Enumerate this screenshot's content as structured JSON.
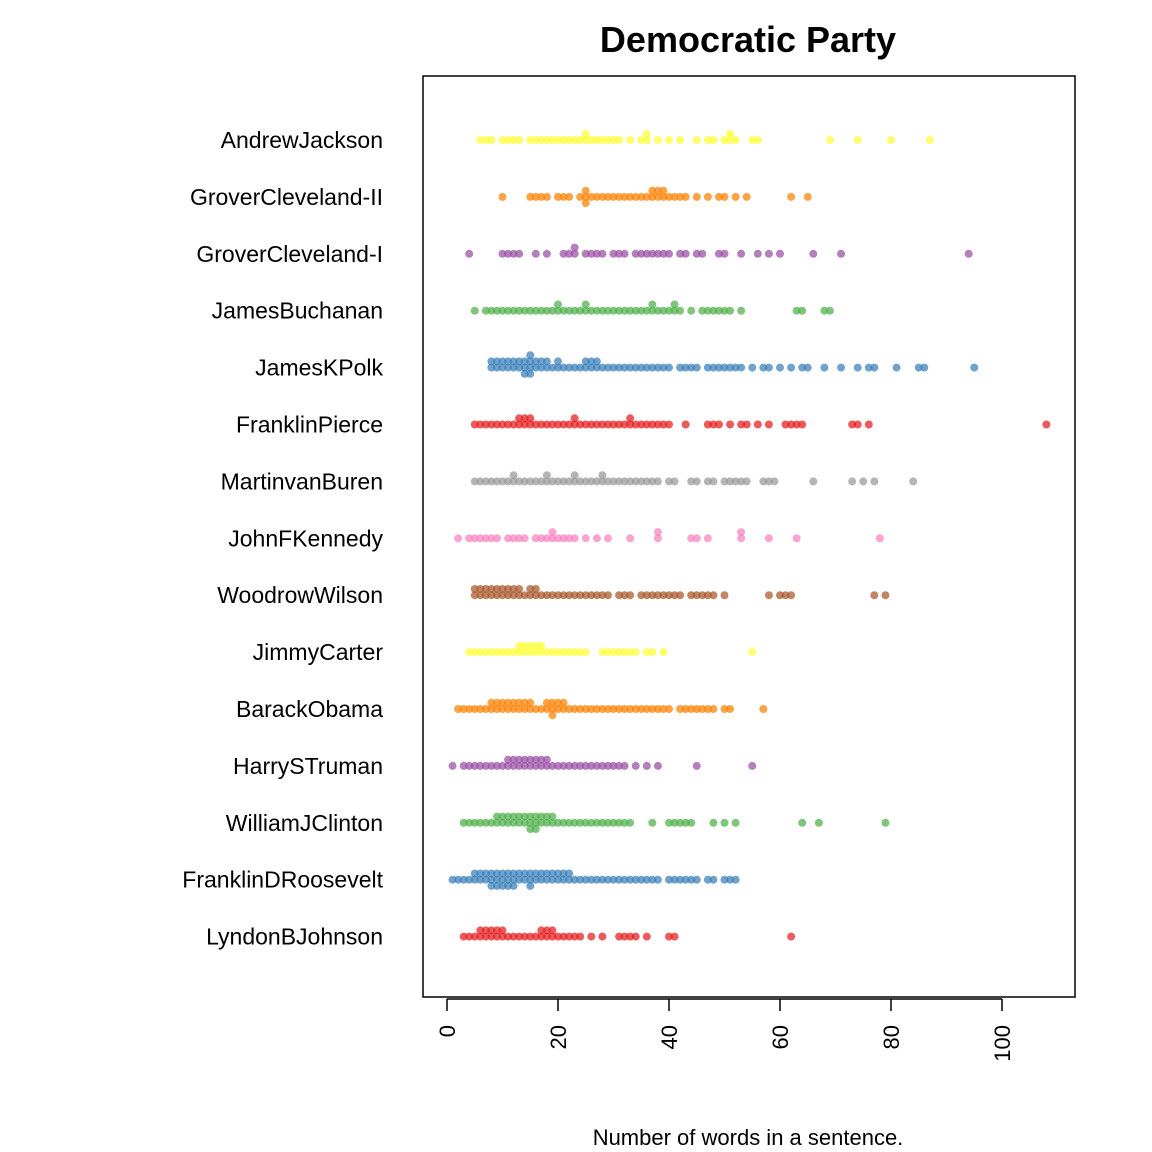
{
  "chart_data": {
    "type": "scatter",
    "subtype": "beeswarm",
    "title": "Democratic Party",
    "xlabel": "Number of words in a sentence.",
    "ylabel": "",
    "xlim": [
      -4,
      113
    ],
    "xticks": [
      0,
      20,
      40,
      60,
      80,
      100
    ],
    "grid": false,
    "legend": "none",
    "categories": [
      "AndrewJackson",
      "GroverCleveland-II",
      "GroverCleveland-I",
      "JamesBuchanan",
      "JamesKPolk",
      "FranklinPierce",
      "MartinvanBuren",
      "JohnFKennedy",
      "WoodrowWilson",
      "JimmyCarter",
      "BarackObama",
      "HarrySTruman",
      "WilliamJClinton",
      "FranklinDRoosevelt",
      "LyndonBJohnson"
    ],
    "series": [
      {
        "name": "AndrewJackson",
        "color": "#ffff33",
        "values": [
          6,
          7,
          8,
          10,
          11,
          12,
          13,
          15,
          16,
          17,
          18,
          19,
          20,
          21,
          22,
          23,
          24,
          25,
          25,
          26,
          27,
          28,
          29,
          30,
          31,
          33,
          35,
          36,
          36,
          38,
          40,
          42,
          45,
          47,
          48,
          50,
          51,
          51,
          52,
          55,
          56,
          69,
          74,
          80,
          87
        ]
      },
      {
        "name": "GroverCleveland-II",
        "color": "#ff7f00",
        "values": [
          10,
          15,
          16,
          17,
          18,
          20,
          21,
          22,
          24,
          25,
          25,
          25,
          26,
          27,
          28,
          29,
          30,
          31,
          32,
          33,
          34,
          35,
          36,
          37,
          37,
          38,
          38,
          39,
          39,
          40,
          41,
          42,
          43,
          45,
          47,
          49,
          50,
          52,
          54,
          62,
          65
        ]
      },
      {
        "name": "GroverCleveland-I",
        "color": "#984ea3",
        "values": [
          4,
          10,
          11,
          12,
          13,
          16,
          18,
          21,
          22,
          23,
          23,
          25,
          26,
          27,
          28,
          30,
          31,
          32,
          34,
          35,
          36,
          37,
          38,
          39,
          40,
          42,
          43,
          45,
          46,
          49,
          50,
          53,
          56,
          58,
          60,
          66,
          71,
          94
        ]
      },
      {
        "name": "JamesBuchanan",
        "color": "#4daf4a",
        "values": [
          5,
          7,
          8,
          9,
          10,
          11,
          12,
          13,
          14,
          15,
          16,
          17,
          18,
          19,
          20,
          20,
          21,
          22,
          23,
          24,
          25,
          25,
          26,
          27,
          28,
          29,
          30,
          31,
          32,
          33,
          34,
          35,
          36,
          37,
          37,
          38,
          39,
          40,
          41,
          41,
          42,
          44,
          46,
          47,
          48,
          49,
          50,
          51,
          53,
          63,
          64,
          68,
          69
        ]
      },
      {
        "name": "JamesKPolk",
        "color": "#377eb8",
        "values": [
          8,
          8,
          9,
          9,
          10,
          10,
          11,
          11,
          12,
          12,
          13,
          13,
          14,
          14,
          14,
          15,
          15,
          15,
          15,
          16,
          16,
          17,
          17,
          18,
          18,
          19,
          20,
          20,
          21,
          22,
          23,
          24,
          25,
          25,
          26,
          26,
          27,
          27,
          28,
          29,
          30,
          31,
          32,
          33,
          34,
          35,
          36,
          37,
          38,
          39,
          40,
          42,
          43,
          44,
          45,
          47,
          48,
          49,
          50,
          51,
          52,
          53,
          55,
          57,
          58,
          60,
          62,
          64,
          65,
          68,
          71,
          74,
          76,
          77,
          81,
          85,
          86,
          95
        ]
      },
      {
        "name": "FranklinPierce",
        "color": "#e41a1c",
        "values": [
          5,
          6,
          7,
          8,
          9,
          10,
          11,
          12,
          13,
          13,
          14,
          14,
          15,
          15,
          16,
          17,
          18,
          19,
          20,
          21,
          22,
          23,
          23,
          24,
          25,
          26,
          27,
          28,
          29,
          30,
          31,
          32,
          33,
          33,
          34,
          35,
          36,
          37,
          38,
          39,
          40,
          43,
          47,
          48,
          49,
          51,
          53,
          54,
          56,
          58,
          61,
          62,
          63,
          64,
          73,
          74,
          76,
          108
        ]
      },
      {
        "name": "MartinvanBuren",
        "color": "#999999",
        "values": [
          5,
          6,
          7,
          8,
          9,
          10,
          11,
          12,
          12,
          13,
          14,
          15,
          16,
          17,
          18,
          18,
          19,
          20,
          21,
          22,
          23,
          23,
          24,
          25,
          26,
          27,
          28,
          28,
          29,
          30,
          31,
          32,
          33,
          34,
          35,
          36,
          37,
          38,
          40,
          41,
          44,
          45,
          47,
          48,
          50,
          51,
          52,
          53,
          54,
          57,
          58,
          59,
          66,
          73,
          75,
          77,
          84
        ]
      },
      {
        "name": "JohnFKennedy",
        "color": "#f781bf",
        "values": [
          2,
          4,
          5,
          6,
          7,
          8,
          9,
          11,
          12,
          13,
          14,
          16,
          17,
          18,
          19,
          19,
          20,
          21,
          22,
          23,
          25,
          27,
          29,
          33,
          38,
          38,
          44,
          45,
          47,
          53,
          53,
          58,
          63,
          78
        ]
      },
      {
        "name": "WoodrowWilson",
        "color": "#a65628",
        "values": [
          5,
          5,
          6,
          6,
          7,
          7,
          8,
          8,
          9,
          9,
          10,
          10,
          11,
          11,
          12,
          12,
          13,
          13,
          14,
          15,
          15,
          16,
          16,
          17,
          18,
          19,
          20,
          21,
          22,
          23,
          24,
          25,
          26,
          27,
          28,
          29,
          31,
          32,
          33,
          35,
          36,
          37,
          38,
          39,
          40,
          41,
          42,
          44,
          45,
          46,
          47,
          48,
          50,
          58,
          60,
          61,
          62,
          77,
          79
        ]
      },
      {
        "name": "JimmyCarter",
        "color": "#ffff33",
        "values": [
          4,
          5,
          6,
          7,
          8,
          9,
          10,
          11,
          12,
          13,
          13,
          14,
          14,
          15,
          15,
          16,
          16,
          17,
          17,
          18,
          19,
          20,
          21,
          22,
          23,
          24,
          25,
          28,
          29,
          30,
          31,
          32,
          33,
          34,
          36,
          37,
          39,
          55
        ]
      },
      {
        "name": "BarackObama",
        "color": "#ff7f00",
        "values": [
          2,
          3,
          4,
          5,
          6,
          7,
          8,
          8,
          9,
          9,
          10,
          10,
          11,
          11,
          12,
          12,
          13,
          13,
          14,
          14,
          15,
          15,
          16,
          17,
          18,
          18,
          19,
          19,
          19,
          20,
          20,
          21,
          21,
          22,
          23,
          24,
          25,
          26,
          27,
          28,
          29,
          30,
          31,
          32,
          33,
          34,
          35,
          36,
          37,
          38,
          39,
          40,
          42,
          43,
          44,
          45,
          46,
          47,
          48,
          50,
          51,
          57
        ]
      },
      {
        "name": "HarrySTruman",
        "color": "#984ea3",
        "values": [
          1,
          3,
          4,
          5,
          6,
          7,
          8,
          9,
          10,
          11,
          11,
          12,
          12,
          13,
          13,
          14,
          14,
          15,
          15,
          16,
          16,
          17,
          17,
          18,
          18,
          19,
          20,
          21,
          22,
          23,
          24,
          25,
          26,
          27,
          28,
          29,
          30,
          31,
          32,
          34,
          36,
          38,
          45,
          55
        ]
      },
      {
        "name": "WilliamJClinton",
        "color": "#4daf4a",
        "values": [
          3,
          4,
          5,
          6,
          7,
          8,
          9,
          9,
          10,
          10,
          11,
          11,
          12,
          12,
          13,
          13,
          14,
          14,
          15,
          15,
          15,
          16,
          16,
          16,
          17,
          17,
          18,
          18,
          19,
          19,
          20,
          21,
          22,
          23,
          24,
          25,
          26,
          27,
          28,
          29,
          30,
          31,
          32,
          33,
          37,
          40,
          41,
          42,
          43,
          44,
          48,
          50,
          52,
          64,
          67,
          79
        ]
      },
      {
        "name": "FranklinDRoosevelt",
        "color": "#377eb8",
        "values": [
          1,
          2,
          3,
          4,
          5,
          5,
          6,
          6,
          7,
          7,
          8,
          8,
          8,
          9,
          9,
          9,
          10,
          10,
          10,
          11,
          11,
          11,
          12,
          12,
          12,
          13,
          13,
          14,
          14,
          15,
          15,
          15,
          16,
          16,
          17,
          17,
          18,
          18,
          19,
          19,
          20,
          20,
          21,
          21,
          22,
          22,
          23,
          24,
          25,
          26,
          27,
          28,
          29,
          30,
          31,
          32,
          33,
          34,
          35,
          36,
          37,
          38,
          40,
          41,
          42,
          43,
          44,
          45,
          47,
          48,
          50,
          51,
          52
        ]
      },
      {
        "name": "LyndonBJohnson",
        "color": "#e41a1c",
        "values": [
          3,
          4,
          5,
          6,
          6,
          7,
          7,
          8,
          8,
          9,
          9,
          10,
          10,
          11,
          12,
          13,
          14,
          15,
          16,
          17,
          17,
          18,
          18,
          19,
          19,
          20,
          21,
          22,
          23,
          24,
          26,
          28,
          31,
          32,
          33,
          34,
          36,
          40,
          41,
          62
        ]
      }
    ]
  }
}
